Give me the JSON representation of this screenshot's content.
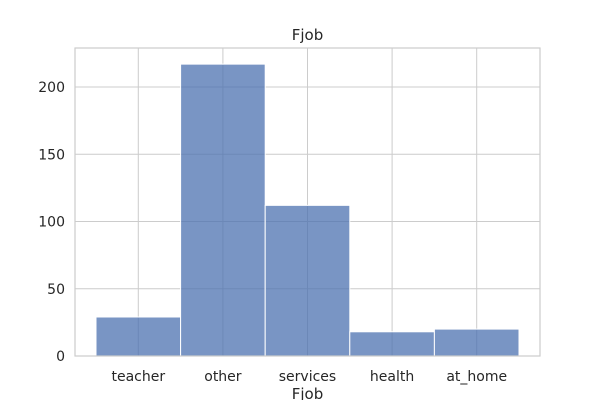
{
  "chart_data": {
    "type": "bar",
    "title": "Fjob",
    "xlabel": "Fjob",
    "ylabel": "",
    "categories": [
      "teacher",
      "other",
      "services",
      "health",
      "at_home"
    ],
    "values": [
      29,
      217,
      112,
      18,
      20
    ],
    "ylim": [
      0,
      229
    ],
    "yticks": [
      "0",
      "50",
      "100",
      "150",
      "200"
    ],
    "grid": true,
    "legend": "none"
  },
  "colors": {
    "bar_fill": "#4c72b0",
    "bar_stroke": "#ffffff",
    "grid": "#cccccc",
    "axis": "#cccccc",
    "text": "#262626"
  }
}
